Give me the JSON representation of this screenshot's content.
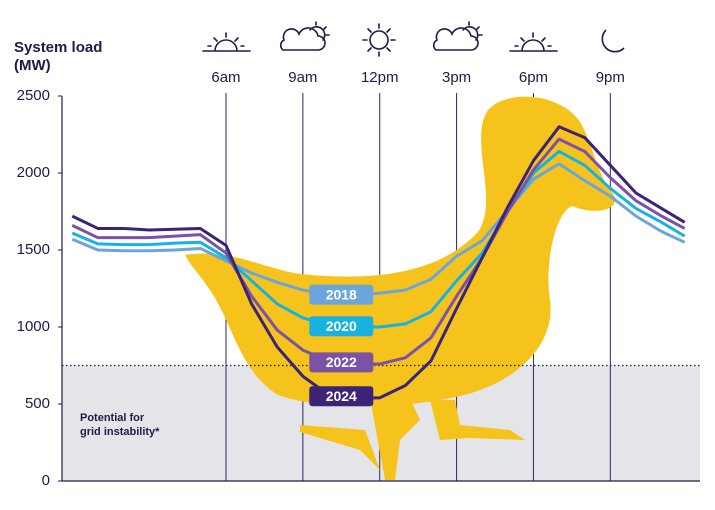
{
  "chart_data": {
    "type": "line",
    "y_label": [
      "System load",
      "(MW)"
    ],
    "x": [
      0,
      1,
      2,
      3,
      4,
      5,
      6,
      7,
      8,
      9,
      10,
      11,
      12,
      13,
      14,
      15,
      16,
      17,
      18,
      19,
      20,
      21,
      22,
      23,
      23.9
    ],
    "series": [
      {
        "name": "2018",
        "color": "#6aa6dc",
        "values": [
          1570,
          1500,
          1495,
          1495,
          1500,
          1510,
          1430,
          1350,
          1290,
          1240,
          1210,
          1210,
          1220,
          1240,
          1310,
          1460,
          1560,
          1760,
          1960,
          2060,
          1950,
          1850,
          1720,
          1620,
          1550
        ]
      },
      {
        "name": "2020",
        "color": "#18b2e0",
        "values": [
          1610,
          1540,
          1535,
          1535,
          1545,
          1550,
          1450,
          1300,
          1150,
          1060,
          1010,
          1000,
          1000,
          1020,
          1100,
          1300,
          1480,
          1750,
          2000,
          2140,
          2050,
          1900,
          1770,
          1680,
          1590
        ]
      },
      {
        "name": "2022",
        "color": "#7b52a6",
        "values": [
          1660,
          1580,
          1580,
          1580,
          1590,
          1600,
          1480,
          1200,
          980,
          850,
          780,
          760,
          760,
          800,
          930,
          1200,
          1450,
          1750,
          2020,
          2220,
          2140,
          1970,
          1820,
          1720,
          1640
        ]
      },
      {
        "name": "2024",
        "color": "#3b2378",
        "values": [
          1720,
          1640,
          1640,
          1630,
          1635,
          1640,
          1530,
          1150,
          870,
          680,
          560,
          540,
          540,
          620,
          780,
          1120,
          1450,
          1780,
          2080,
          2300,
          2230,
          2050,
          1870,
          1770,
          1680
        ]
      }
    ],
    "xlim": [
      -0.4,
      24.5
    ],
    "xticks": [
      {
        "value": 6,
        "label": "6am"
      },
      {
        "value": 9,
        "label": "9am"
      },
      {
        "value": 12,
        "label": "12pm"
      },
      {
        "value": 15,
        "label": "3pm"
      },
      {
        "value": 18,
        "label": "6pm"
      },
      {
        "value": 21,
        "label": "9pm"
      }
    ],
    "ylim": [
      0,
      2500
    ],
    "yticks": [
      0,
      500,
      1000,
      1500,
      2000,
      2500
    ],
    "threshold": 750,
    "threshold_label": [
      "Potential for",
      "grid instability*"
    ],
    "grid": "x"
  }
}
